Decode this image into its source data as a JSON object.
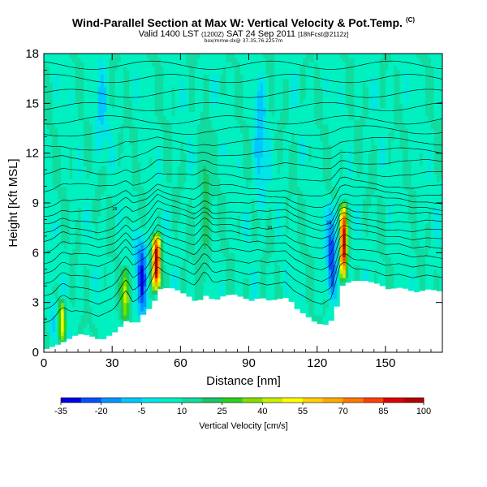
{
  "header": {
    "title": "Wind-Parallel Section at Max W: Vertical Velocity & Pot.Temp.",
    "title_mark": "(C)",
    "valid_main": "Valid 1400 LST",
    "valid_utc": "(1200Z)",
    "valid_date": "SAT 24 Sep 2011",
    "run_info": "[18hFcst@2112z]",
    "info_line": "box/mmw-dx@ 37.35,76.2257m"
  },
  "chart_data": {
    "type": "heatmap",
    "title": "Wind-Parallel Section at Max W: Vertical Velocity & Pot.Temp.",
    "xlabel": "Distance [nm]",
    "ylabel": "Height [Kft MSL]",
    "xlim": [
      0,
      175
    ],
    "ylim": [
      0,
      18
    ],
    "xticks": [
      0,
      30,
      60,
      90,
      120,
      150
    ],
    "yticks": [
      0,
      3,
      6,
      9,
      12,
      15,
      18
    ],
    "colorbar": {
      "label": "Vertical Velocity [cm/s]",
      "ticks": [
        -35,
        -20,
        -5,
        10,
        25,
        40,
        55,
        70,
        85,
        100
      ],
      "colors": [
        "#0000e6",
        "#0050ff",
        "#0096ff",
        "#00c8ff",
        "#00e6e6",
        "#00f0c0",
        "#10dca0",
        "#18c864",
        "#30d020",
        "#80e000",
        "#c8f000",
        "#ffff00",
        "#ffd200",
        "#ffaa00",
        "#ff7800",
        "#ff4000",
        "#e00000",
        "#b40000"
      ]
    },
    "background_w_cms": 8,
    "terrain": [
      {
        "x": 0,
        "h": 0.2
      },
      {
        "x": 6,
        "h": 0.5
      },
      {
        "x": 10,
        "h": 0.8
      },
      {
        "x": 14,
        "h": 1.1
      },
      {
        "x": 19,
        "h": 1.0
      },
      {
        "x": 24,
        "h": 0.7
      },
      {
        "x": 30,
        "h": 1.2
      },
      {
        "x": 33,
        "h": 1.6
      },
      {
        "x": 36,
        "h": 2.0
      },
      {
        "x": 39,
        "h": 1.6
      },
      {
        "x": 42,
        "h": 2.2
      },
      {
        "x": 45,
        "h": 2.6
      },
      {
        "x": 48,
        "h": 3.2
      },
      {
        "x": 50,
        "h": 3.8
      },
      {
        "x": 54,
        "h": 3.9
      },
      {
        "x": 58,
        "h": 3.7
      },
      {
        "x": 62,
        "h": 3.4
      },
      {
        "x": 66,
        "h": 3.0
      },
      {
        "x": 70,
        "h": 3.4
      },
      {
        "x": 74,
        "h": 3.1
      },
      {
        "x": 78,
        "h": 3.4
      },
      {
        "x": 82,
        "h": 3.5
      },
      {
        "x": 86,
        "h": 3.3
      },
      {
        "x": 90,
        "h": 3.1
      },
      {
        "x": 94,
        "h": 3.3
      },
      {
        "x": 98,
        "h": 3.1
      },
      {
        "x": 102,
        "h": 3.2
      },
      {
        "x": 106,
        "h": 3.3
      },
      {
        "x": 110,
        "h": 2.6
      },
      {
        "x": 114,
        "h": 2.2
      },
      {
        "x": 118,
        "h": 1.8
      },
      {
        "x": 122,
        "h": 1.6
      },
      {
        "x": 126,
        "h": 2.0
      },
      {
        "x": 128,
        "h": 3.0
      },
      {
        "x": 130,
        "h": 4.0
      },
      {
        "x": 134,
        "h": 4.3
      },
      {
        "x": 140,
        "h": 4.3
      },
      {
        "x": 146,
        "h": 4.1
      },
      {
        "x": 150,
        "h": 3.8
      },
      {
        "x": 156,
        "h": 3.9
      },
      {
        "x": 162,
        "h": 3.6
      },
      {
        "x": 168,
        "h": 3.8
      },
      {
        "x": 175,
        "h": 3.6
      }
    ],
    "updrafts": [
      {
        "x": 8,
        "h0": 0.5,
        "h1": 3.4,
        "w": 1.5,
        "peak": 55
      },
      {
        "x": 36,
        "h0": 1.8,
        "h1": 5.3,
        "w": 1.7,
        "peak": 45
      },
      {
        "x": 49.5,
        "h0": 3.6,
        "h1": 7.3,
        "w": 1.8,
        "peak": 100
      },
      {
        "x": 131.5,
        "h0": 4.3,
        "h1": 9.2,
        "w": 1.4,
        "peak": 100
      },
      {
        "x": 71,
        "h0": 3.5,
        "h1": 14,
        "w": 2.5,
        "peak": 22
      }
    ],
    "downdrafts": [
      {
        "x": 4,
        "h0": 0.3,
        "h1": 3.4,
        "w": 1.8,
        "peak": -8
      },
      {
        "x": 43,
        "h0": 2.0,
        "h1": 7.5,
        "w": 2.5,
        "peak": -25
      },
      {
        "x": 126.5,
        "h0": 3.0,
        "h1": 9.4,
        "w": 2.2,
        "peak": -25
      },
      {
        "x": 95,
        "h0": 8,
        "h1": 17,
        "w": 2.5,
        "peak": -10
      },
      {
        "x": 25,
        "h0": 11,
        "h1": 18,
        "w": 2.5,
        "peak": -5
      }
    ],
    "theta_contours": [
      {
        "label": "",
        "z": 1.6
      },
      {
        "label": "",
        "z": 2.4
      },
      {
        "label": "",
        "z": 3.2
      },
      {
        "label": "",
        "z": 4.0
      },
      {
        "label": "",
        "z": 4.7
      },
      {
        "label": "",
        "z": 5.3
      },
      {
        "label": "20",
        "z": 5.9
      },
      {
        "label": "",
        "z": 6.5
      },
      {
        "label": "24",
        "z": 7.0
      },
      {
        "label": "",
        "z": 7.6
      },
      {
        "label": "28",
        "z": 8.2
      },
      {
        "label": "",
        "z": 8.8
      },
      {
        "label": "",
        "z": 9.7
      },
      {
        "label": "",
        "z": 10.6
      },
      {
        "label": "",
        "z": 11.5
      },
      {
        "label": "",
        "z": 12.3
      },
      {
        "label": "",
        "z": 13.2
      },
      {
        "label": "",
        "z": 14.0
      },
      {
        "label": "",
        "z": 14.8
      },
      {
        "label": "",
        "z": 15.6
      },
      {
        "label": "",
        "z": 16.5
      },
      {
        "label": "",
        "z": 17.3
      }
    ]
  }
}
